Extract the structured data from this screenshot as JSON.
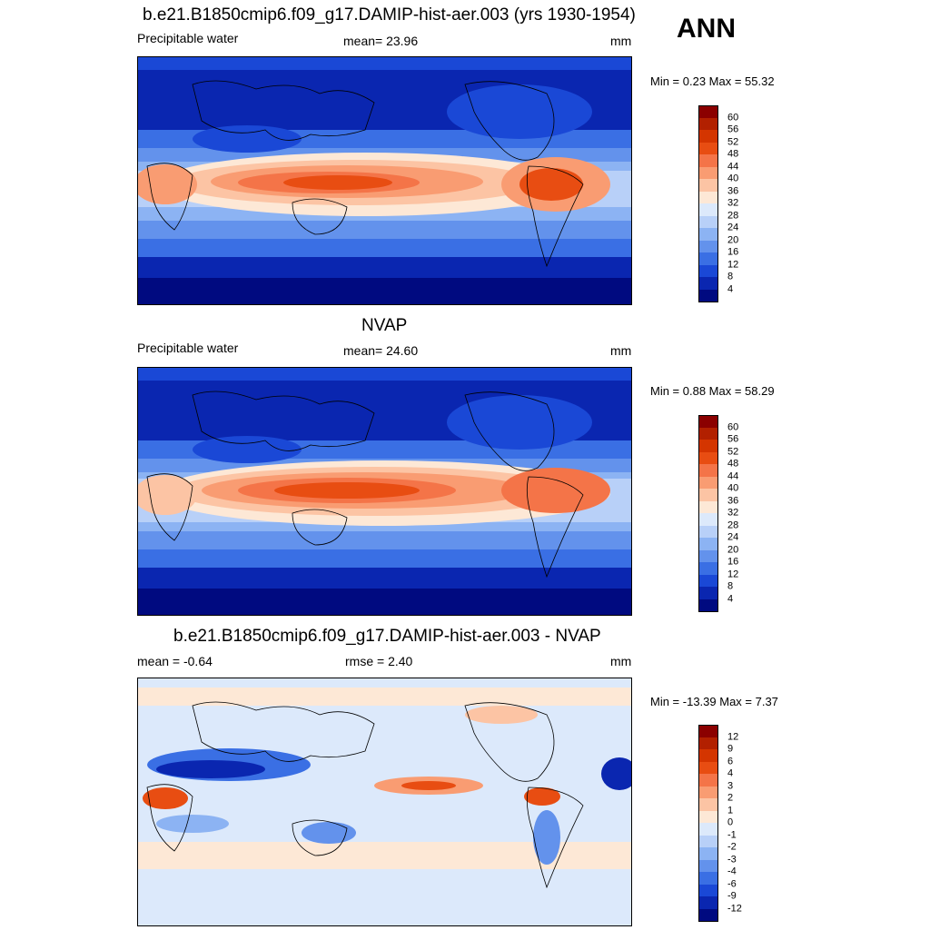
{
  "season": "ANN",
  "panels": [
    {
      "title": "b.e21.B1850cmip6.f09_g17.DAMIP-hist-aer.003 (yrs 1930-1954)",
      "left_label": "Precipitable water",
      "center_label": "mean=  23.96",
      "units": "mm",
      "minmax": "Min =   0.23 Max =  55.32",
      "kind": "full"
    },
    {
      "title": "NVAP",
      "left_label": "Precipitable water",
      "center_label": "mean=  24.60",
      "units": "mm",
      "minmax": "Min =   0.88 Max =  58.29",
      "kind": "full"
    },
    {
      "title": "b.e21.B1850cmip6.f09_g17.DAMIP-hist-aer.003 - NVAP",
      "left_label": "mean =  -0.64",
      "center_label": "rmse =   2.40",
      "units": "mm",
      "minmax": "Min = -13.39 Max =   7.37",
      "kind": "diff"
    }
  ],
  "colorbars": {
    "full": {
      "labels": [
        "60",
        "56",
        "52",
        "48",
        "44",
        "40",
        "36",
        "32",
        "28",
        "24",
        "20",
        "16",
        "12",
        "8",
        "4"
      ],
      "colors": [
        "#8b0000",
        "#b22000",
        "#d43500",
        "#e84d12",
        "#f47448",
        "#f99c72",
        "#fcc4a4",
        "#fde8d6",
        "#dce9fb",
        "#b8d0f8",
        "#8cb3f3",
        "#6392ec",
        "#3a6fe4",
        "#1a48d6",
        "#0a26b0",
        "#000a80"
      ]
    },
    "diff": {
      "labels": [
        "12",
        "9",
        "6",
        "4",
        "3",
        "2",
        "1",
        "0",
        "-1",
        "-2",
        "-3",
        "-4",
        "-6",
        "-9",
        "-12"
      ],
      "colors": [
        "#8b0000",
        "#b22000",
        "#d43500",
        "#e84d12",
        "#f47448",
        "#f99c72",
        "#fcc4a4",
        "#fde8d6",
        "#dce9fb",
        "#b8d0f8",
        "#8cb3f3",
        "#6392ec",
        "#3a6fe4",
        "#1a48d6",
        "#0a26b0",
        "#000a80"
      ]
    }
  }
}
